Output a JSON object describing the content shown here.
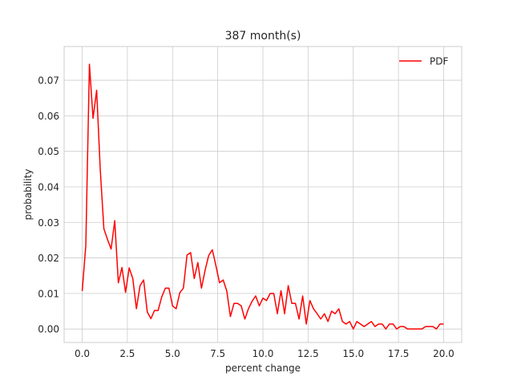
{
  "chart_data": {
    "type": "line",
    "title": "387 month(s)",
    "xlabel": "percent change",
    "ylabel": "probability",
    "xlim": [
      -1.0,
      21.0
    ],
    "ylim": [
      -0.0038,
      0.0795
    ],
    "xticks": [
      0.0,
      2.5,
      5.0,
      7.5,
      10.0,
      12.5,
      15.0,
      17.5,
      20.0
    ],
    "xtick_labels": [
      "0.0",
      "2.5",
      "5.0",
      "7.5",
      "10.0",
      "12.5",
      "15.0",
      "17.5",
      "20.0"
    ],
    "yticks": [
      0.0,
      0.01,
      0.02,
      0.03,
      0.04,
      0.05,
      0.06,
      0.07
    ],
    "ytick_labels": [
      "0.00",
      "0.01",
      "0.02",
      "0.03",
      "0.04",
      "0.05",
      "0.06",
      "0.07"
    ],
    "grid": true,
    "legend_position": "top-right",
    "series": [
      {
        "name": "PDF",
        "color": "#ff0000",
        "x": [
          0.0,
          0.2,
          0.4,
          0.6,
          0.8,
          1.0,
          1.2,
          1.4,
          1.6,
          1.8,
          2.0,
          2.2,
          2.4,
          2.6,
          2.8,
          3.0,
          3.2,
          3.4,
          3.6,
          3.8,
          4.0,
          4.2,
          4.4,
          4.6,
          4.8,
          5.0,
          5.2,
          5.4,
          5.6,
          5.8,
          6.0,
          6.2,
          6.4,
          6.6,
          6.8,
          7.0,
          7.2,
          7.4,
          7.6,
          7.8,
          8.0,
          8.2,
          8.4,
          8.6,
          8.8,
          9.0,
          9.2,
          9.4,
          9.6,
          9.8,
          10.0,
          10.2,
          10.4,
          10.6,
          10.8,
          11.0,
          11.2,
          11.4,
          11.6,
          11.8,
          12.0,
          12.2,
          12.4,
          12.6,
          12.8,
          13.0,
          13.2,
          13.4,
          13.6,
          13.8,
          14.0,
          14.2,
          14.4,
          14.6,
          14.8,
          15.0,
          15.2,
          15.4,
          15.6,
          15.8,
          16.0,
          16.2,
          16.4,
          16.6,
          16.8,
          17.0,
          17.2,
          17.4,
          17.6,
          17.8,
          18.0,
          18.2,
          18.4,
          18.6,
          18.8,
          19.0,
          19.2,
          19.4,
          19.6,
          19.8,
          20.0
        ],
        "y": [
          0.0107,
          0.0235,
          0.0745,
          0.0593,
          0.0672,
          0.0448,
          0.0282,
          0.0252,
          0.0225,
          0.0305,
          0.013,
          0.0173,
          0.0103,
          0.0172,
          0.0142,
          0.0057,
          0.0122,
          0.0138,
          0.0048,
          0.0029,
          0.0052,
          0.0052,
          0.009,
          0.0115,
          0.0115,
          0.0065,
          0.0057,
          0.0102,
          0.0115,
          0.0208,
          0.0215,
          0.0142,
          0.0187,
          0.0115,
          0.0165,
          0.0207,
          0.0223,
          0.0178,
          0.013,
          0.0138,
          0.0107,
          0.0035,
          0.0072,
          0.0072,
          0.0065,
          0.0028,
          0.0057,
          0.0078,
          0.0093,
          0.0065,
          0.0087,
          0.008,
          0.01,
          0.01,
          0.0043,
          0.0108,
          0.0043,
          0.0122,
          0.0072,
          0.0072,
          0.0028,
          0.0093,
          0.0014,
          0.008,
          0.0057,
          0.0043,
          0.0028,
          0.0043,
          0.0021,
          0.005,
          0.0043,
          0.0057,
          0.0021,
          0.0014,
          0.0021,
          0.0,
          0.0021,
          0.0014,
          0.0007,
          0.0014,
          0.0021,
          0.0007,
          0.0014,
          0.0014,
          0.0,
          0.0014,
          0.0014,
          0.0,
          0.0007,
          0.0007,
          0.0,
          0.0,
          0.0,
          0.0,
          0.0,
          0.0007,
          0.0007,
          0.0007,
          0.0,
          0.0014,
          0.0014
        ]
      }
    ]
  }
}
